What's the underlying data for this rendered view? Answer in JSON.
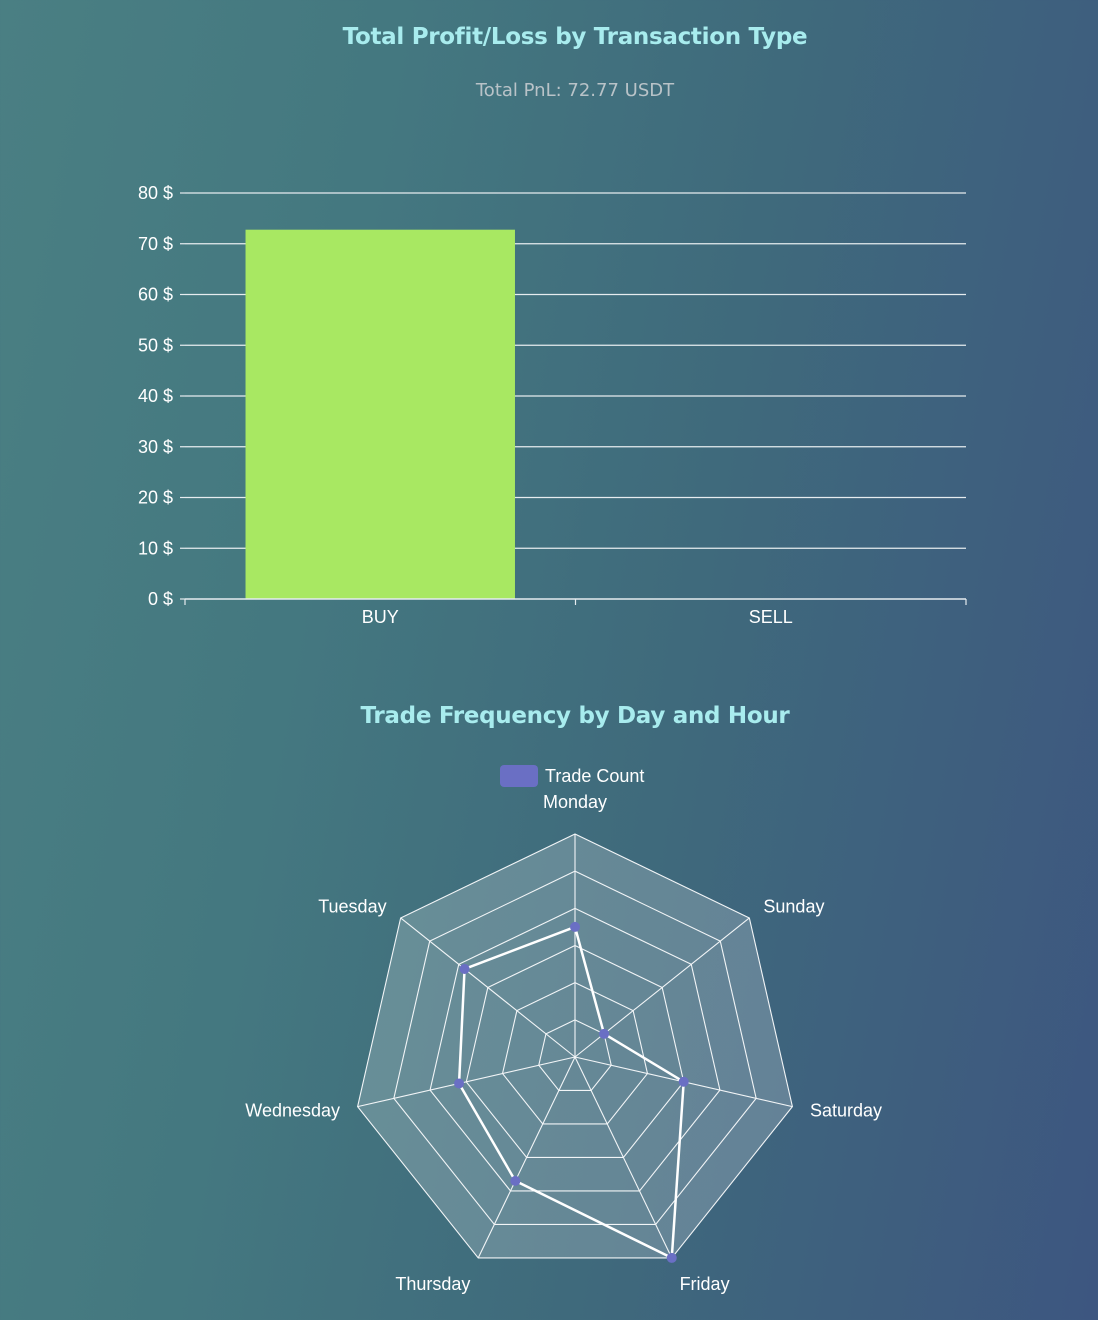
{
  "chart_data": [
    {
      "type": "bar",
      "title": "Total Profit/Loss by Transaction Type",
      "subtitle": "Total PnL: 72.77 USDT",
      "categories": [
        "BUY",
        "SELL"
      ],
      "values": [
        72.77,
        0
      ],
      "ylim": [
        0,
        80
      ],
      "yticks": [
        0,
        10,
        20,
        30,
        40,
        50,
        60,
        70,
        80
      ],
      "tick_suffix": " $",
      "grid": true,
      "bar_color": "#a8e862"
    },
    {
      "type": "radar",
      "title": "Trade Frequency by Day and Hour",
      "labels": [
        "Monday",
        "Sunday",
        "Saturday",
        "Friday",
        "Thursday",
        "Wednesday",
        "Tuesday"
      ],
      "series": [
        {
          "name": "Trade Count",
          "values": [
            3.5,
            1,
            3,
            6,
            3.7,
            3.2,
            3.8
          ]
        }
      ],
      "rmax": 6,
      "rings": 6,
      "legend": "top",
      "point_color": "#6a6fc4",
      "line_color": "#ffffff"
    }
  ]
}
